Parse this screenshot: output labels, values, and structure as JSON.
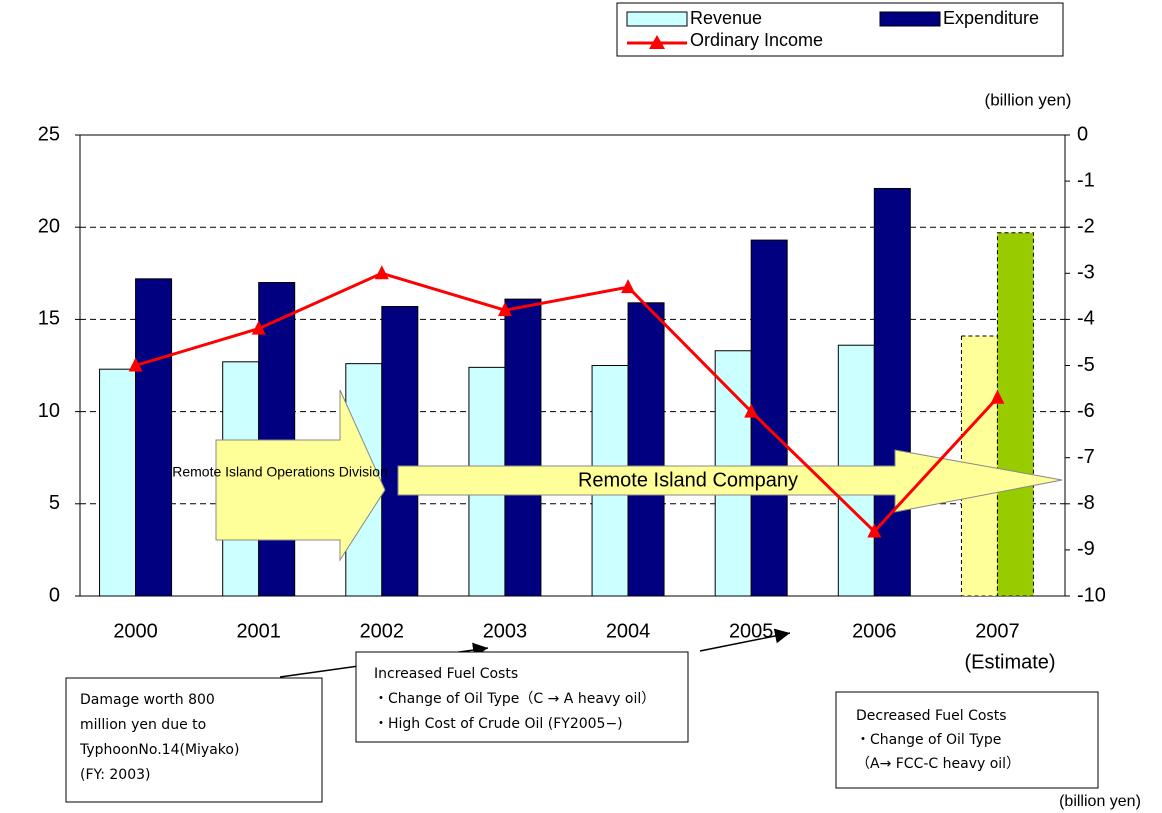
{
  "chart_data": {
    "type": "bar",
    "categories": [
      "2000",
      "2001",
      "2002",
      "2003",
      "2004",
      "2005",
      "2006",
      "2007"
    ],
    "category_note": "(Estimate)",
    "series": [
      {
        "name": "Revenue",
        "color": "#ccffff",
        "estimate_color": "#ffff99",
        "values": [
          12.3,
          12.7,
          12.6,
          12.4,
          12.5,
          13.3,
          13.6,
          14.1
        ]
      },
      {
        "name": "Expenditure",
        "color": "#000080",
        "estimate_color": "#99cc00",
        "values": [
          17.2,
          17.0,
          15.7,
          16.1,
          15.9,
          19.3,
          22.1,
          19.7
        ]
      },
      {
        "name": "Ordinary Income",
        "type": "line",
        "axis": "y2",
        "color": "#ff0000",
        "values": [
          -5.0,
          -4.2,
          -3.0,
          -3.8,
          -3.3,
          -6.0,
          -8.6,
          -5.7
        ]
      }
    ],
    "ylim": [
      0,
      25
    ],
    "yticks": [
      0,
      5,
      10,
      15,
      20,
      25
    ],
    "y2lim": [
      -10,
      0
    ],
    "y2ticks": [
      0,
      -1,
      -2,
      -3,
      -4,
      -5,
      -6,
      -7,
      -8,
      -9,
      -10
    ],
    "y2_unit": "(billion yen)",
    "bottom_unit": "(billion yen)",
    "grid": true,
    "legend": "top-right",
    "phases": [
      "Remote Island Operations Division",
      "Remote Island Company"
    ],
    "annotations": [
      {
        "lines": [
          "Damage worth 800",
          "million yen due to",
          "TyphoonNo.14(Miyako)",
          "(FY: 2003)"
        ]
      },
      {
        "lines": [
          "Increased Fuel Costs",
          "・Change of Oil Type（C → A heavy oil）",
          "・High Cost of Crude Oil (FY2005−)"
        ]
      },
      {
        "lines": [
          "Decreased Fuel Costs",
          "・Change of Oil Type",
          "（A→ FCC-C heavy oil）"
        ]
      }
    ]
  }
}
